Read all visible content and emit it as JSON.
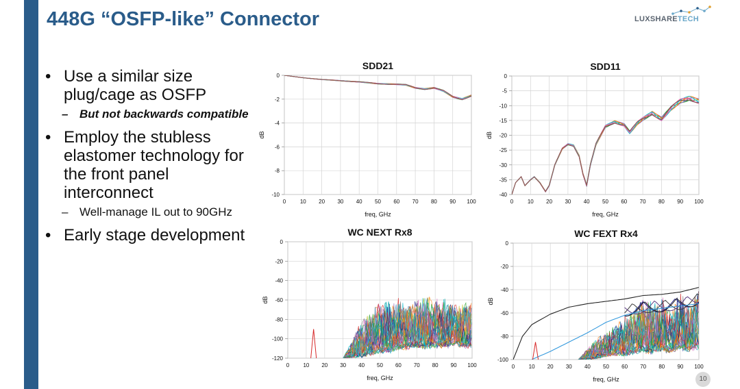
{
  "slide": {
    "title": "448G “OSFP-like” Connector",
    "page_number": "10",
    "colors": {
      "accent": "#2a5c8a",
      "logo_accent": "#6aa7c9"
    }
  },
  "logo": {
    "text_main": "LUXSHARE",
    "text_accent": "TECH"
  },
  "bullets": [
    {
      "level": 1,
      "text": "Use a similar size plug/cage as OSFP"
    },
    {
      "level": 2,
      "text": "But not backwards compatible",
      "emphasis": true
    },
    {
      "level": 1,
      "text": "Employ the stubless elastomer technology for the front panel interconnect"
    },
    {
      "level": 2,
      "text": "Well-manage IL out to 90GHz"
    },
    {
      "level": 1,
      "text": "Early stage development"
    }
  ],
  "chart_data": [
    {
      "type": "line",
      "title": "SDD21",
      "xlabel": "freq, GHz",
      "ylabel": "dB",
      "xlim": [
        0,
        100
      ],
      "ylim": [
        -10,
        0
      ],
      "xticks": [
        0,
        10,
        20,
        30,
        40,
        50,
        60,
        70,
        80,
        90,
        100
      ],
      "yticks": [
        0,
        -2,
        -4,
        -6,
        -8,
        -10
      ],
      "grid": true,
      "series_count": 8,
      "x": [
        0,
        10,
        20,
        30,
        40,
        50,
        60,
        65,
        70,
        75,
        80,
        85,
        90,
        95,
        100
      ],
      "y": [
        0,
        -0.2,
        -0.35,
        -0.45,
        -0.55,
        -0.7,
        -0.75,
        -0.8,
        -1.05,
        -1.15,
        -1.05,
        -1.3,
        -1.8,
        -2.0,
        -1.7
      ]
    },
    {
      "type": "line",
      "title": "SDD11",
      "xlabel": "freq, GHz",
      "ylabel": "dB",
      "xlim": [
        0,
        100
      ],
      "ylim": [
        -40,
        0
      ],
      "xticks": [
        0,
        10,
        20,
        30,
        40,
        50,
        60,
        70,
        80,
        90,
        100
      ],
      "yticks": [
        0,
        -5,
        -10,
        -15,
        -20,
        -25,
        -30,
        -35,
        -40
      ],
      "grid": true,
      "series_count": 8,
      "x": [
        0,
        2,
        5,
        7,
        10,
        12,
        15,
        18,
        20,
        23,
        27,
        30,
        33,
        36,
        38,
        40,
        42,
        45,
        50,
        55,
        60,
        63,
        67,
        70,
        75,
        80,
        85,
        90,
        95,
        100
      ],
      "y": [
        -40,
        -36,
        -34,
        -37,
        -35,
        -34,
        -36,
        -39,
        -37,
        -30,
        -24.5,
        -23,
        -23.5,
        -27,
        -33,
        -37,
        -30,
        -23,
        -17,
        -15.5,
        -16.5,
        -19,
        -16,
        -14.5,
        -12.5,
        -14.5,
        -11,
        -8.5,
        -7.5,
        -8.5
      ]
    },
    {
      "type": "line",
      "title": "WC NEXT Rx8",
      "xlabel": "freq, GHz",
      "ylabel": "dB",
      "xlim": [
        0,
        100
      ],
      "ylim": [
        -120,
        0
      ],
      "xticks": [
        0,
        10,
        20,
        30,
        40,
        50,
        60,
        70,
        80,
        90,
        100
      ],
      "yticks": [
        0,
        -20,
        -40,
        -60,
        -80,
        -100,
        -120
      ],
      "grid": true,
      "series_count": 30,
      "envelope": {
        "x": [
          30,
          35,
          40,
          45,
          50,
          55,
          60,
          65,
          70,
          75,
          80,
          85,
          90,
          95,
          100
        ],
        "upper": [
          -120,
          -100,
          -80,
          -70,
          -62,
          -60,
          -58,
          -66,
          -58,
          -55,
          -56,
          -58,
          -64,
          -62,
          -60
        ],
        "lower": [
          -120,
          -120,
          -120,
          -118,
          -115,
          -116,
          -112,
          -112,
          -110,
          -112,
          -110,
          -111,
          -108,
          -110,
          -110
        ]
      },
      "spike": {
        "x": 14,
        "y": -90
      }
    },
    {
      "type": "line",
      "title": "WC FEXT Rx4",
      "xlabel": "freq, GHz",
      "ylabel": "dB",
      "xlim": [
        0,
        100
      ],
      "ylim": [
        -100,
        0
      ],
      "xticks": [
        0,
        10,
        20,
        30,
        40,
        50,
        60,
        70,
        80,
        90,
        100
      ],
      "yticks": [
        0,
        -20,
        -40,
        -60,
        -80,
        -100
      ],
      "grid": true,
      "series_count": 30,
      "smooth_line": {
        "x": [
          0,
          5,
          10,
          20,
          30,
          40,
          50,
          60,
          70,
          80,
          90,
          100
        ],
        "y": [
          -100,
          -80,
          -70,
          -61,
          -55,
          -52,
          -50,
          -48,
          -45,
          -44,
          -42,
          -38
        ]
      },
      "rising_line": {
        "x": [
          10,
          20,
          30,
          40,
          50,
          60,
          70,
          80,
          90,
          100
        ],
        "y": [
          -100,
          -93,
          -85,
          -77,
          -68,
          -62,
          -58,
          -56,
          -54,
          -52
        ]
      },
      "envelope": {
        "x": [
          35,
          40,
          45,
          50,
          55,
          60,
          65,
          70,
          75,
          80,
          85,
          90,
          95,
          100
        ],
        "upper": [
          -100,
          -90,
          -82,
          -75,
          -70,
          -63,
          -58,
          -45,
          -50,
          -43,
          -60,
          -40,
          -55,
          -38
        ],
        "lower": [
          -100,
          -100,
          -100,
          -98,
          -97,
          -98,
          -96,
          -95,
          -96,
          -94,
          -95,
          -93,
          -94,
          -92
        ]
      },
      "spike": {
        "x": 12,
        "y": -85
      }
    }
  ]
}
